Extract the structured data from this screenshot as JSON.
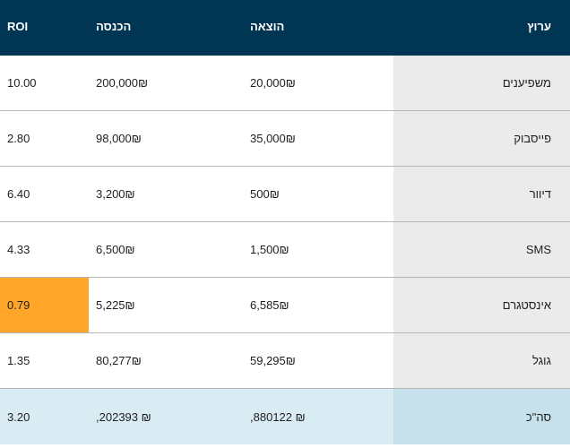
{
  "colors": {
    "header_bg": "#003553",
    "channel_col_bg": "#ebebeb",
    "total_row_bg": "#d9ebf3",
    "total_channel_bg": "#c6e1ec",
    "warning_highlight": "#ffa52a"
  },
  "headers": {
    "channel": "ערוץ",
    "expense": "הוצאה",
    "income": "הכנסה",
    "roi": "ROI"
  },
  "rows": [
    {
      "channel": "משפיענים",
      "expense": "20,000₪",
      "income": "200,000₪",
      "roi": "10.00"
    },
    {
      "channel": "פייסבוק",
      "expense": "35,000₪",
      "income": "98,000₪",
      "roi": "2.80"
    },
    {
      "channel": "דיוור",
      "expense": "500₪",
      "income": "3,200₪",
      "roi": "6.40"
    },
    {
      "channel": "SMS",
      "expense": "1,500₪",
      "income": "6,500₪",
      "roi": "4.33"
    },
    {
      "channel": "אינסטגרם",
      "expense": "6,585₪",
      "income": "5,225₪",
      "roi": "0.79",
      "highlight": true
    },
    {
      "channel": "גוגל",
      "expense": "59,295₪",
      "income": "80,277₪",
      "roi": "1.35"
    }
  ],
  "total": {
    "channel": "סה\"כ",
    "expense": "₪ 880122,",
    "income": "₪ 202393,",
    "roi": "3.20"
  }
}
